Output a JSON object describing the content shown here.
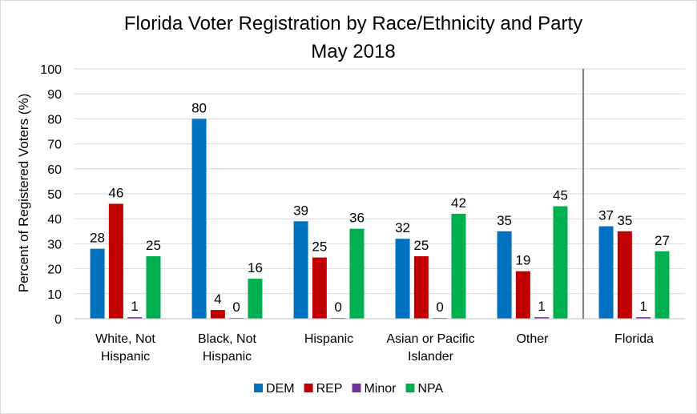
{
  "chart_data": {
    "type": "bar",
    "title": "Florida Voter Registration by Race/Ethnicity and Party",
    "subtitle": "May 2018",
    "ylabel": "Percent of Registered Voters (%)",
    "xlabel": "",
    "ylim": [
      0,
      100
    ],
    "yticks": [
      0,
      10,
      20,
      30,
      40,
      50,
      60,
      70,
      80,
      90,
      100
    ],
    "grid": true,
    "legend_position": "bottom",
    "categories": [
      [
        "White, Not",
        "Hispanic"
      ],
      [
        "Black, Not",
        "Hispanic"
      ],
      [
        "Hispanic"
      ],
      [
        "Asian or Pacific",
        "Islander"
      ],
      [
        "Other"
      ],
      [
        "Florida"
      ]
    ],
    "series": [
      {
        "name": "DEM",
        "color": "#0070c0",
        "values": [
          28,
          80,
          39,
          32,
          35,
          37
        ],
        "labels": [
          "28",
          "80",
          "39",
          "32",
          "35",
          "37"
        ]
      },
      {
        "name": "REP",
        "color": "#c00000",
        "values": [
          46,
          3.5,
          24.5,
          25,
          19,
          35
        ],
        "labels": [
          "46",
          "4",
          "25",
          "25",
          "19",
          "35"
        ]
      },
      {
        "name": "Minor",
        "color": "#7030a0",
        "values": [
          0.6,
          0.3,
          0.3,
          0.3,
          0.6,
          0.6
        ],
        "labels": [
          "1",
          "0",
          "0",
          "0",
          "1",
          "1"
        ]
      },
      {
        "name": "NPA",
        "color": "#00b050",
        "values": [
          25,
          16,
          36,
          42,
          45,
          27
        ],
        "labels": [
          "25",
          "16",
          "36",
          "42",
          "45",
          "27"
        ]
      }
    ],
    "separator_before_category": 5
  }
}
